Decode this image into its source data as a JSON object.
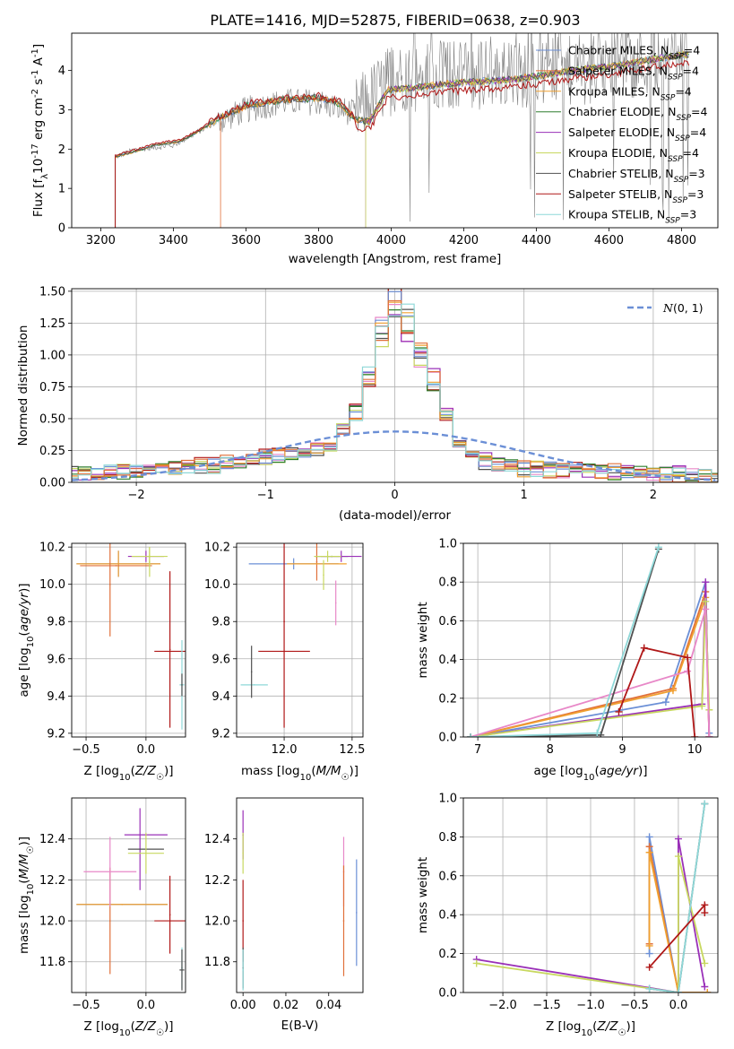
{
  "figure": {
    "title": "PLATE=1416, MJD=52875, FIBERID=0638, z=0.903"
  },
  "colors": {
    "models": [
      "#6b8fd6",
      "#e0703a",
      "#f0a030",
      "#2f7f2f",
      "#9a30b8",
      "#c8d860",
      "#505050",
      "#b01818",
      "#8ed8d8"
    ],
    "pink": "#e888c8",
    "normal_curve": "#6b8fd6",
    "grid": "#b0b0b0"
  },
  "chart_data": [
    {
      "id": "spectrum",
      "type": "line",
      "title": "PLATE=1416, MJD=52875, FIBERID=0638, z=0.903",
      "xlabel": "wavelength [Angstrom, rest frame]",
      "ylabel": "Flux [f$_\\lambda$10$^{-17}$ erg cm$^{-2}$ s$^{-1}$ A$^{-1}$]",
      "ylabel_parts": [
        "Flux [f",
        "λ",
        "10",
        "-17",
        " erg cm",
        "-2",
        " s",
        "-1",
        " A",
        "-1",
        "]"
      ],
      "xlim": [
        3120,
        4900
      ],
      "ylim": [
        0,
        4.95
      ],
      "xticks": [
        3200,
        3400,
        3600,
        3800,
        4000,
        4200,
        4400,
        4600,
        4800
      ],
      "yticks": [
        0,
        1,
        2,
        3,
        4
      ],
      "grid": false,
      "legend_position": "top-right",
      "legend": [
        {
          "label": "Chabrier MILES, N",
          "sub": "SSP",
          "tail": "=4"
        },
        {
          "label": "Salpeter MILES, N",
          "sub": "SSP",
          "tail": "=4"
        },
        {
          "label": "Kroupa MILES, N",
          "sub": "SSP",
          "tail": "=4"
        },
        {
          "label": "Chabrier ELODIE, N",
          "sub": "SSP",
          "tail": "=4"
        },
        {
          "label": "Salpeter ELODIE, N",
          "sub": "SSP",
          "tail": "=4"
        },
        {
          "label": "Kroupa ELODIE, N",
          "sub": "SSP",
          "tail": "=4"
        },
        {
          "label": "Chabrier STELIB, N",
          "sub": "SSP",
          "tail": "=3"
        },
        {
          "label": "Salpeter STELIB, N",
          "sub": "SSP",
          "tail": "=3"
        },
        {
          "label": "Kroupa STELIB, N",
          "sub": "SSP",
          "tail": "=3"
        }
      ],
      "data_series": {
        "name": "data",
        "x_range": [
          3240,
          4820
        ],
        "approx_level": [
          [
            3240,
            1.8
          ],
          [
            3300,
            2.0
          ],
          [
            3400,
            2.1
          ],
          [
            3500,
            2.6
          ],
          [
            3600,
            3.0
          ],
          [
            3700,
            3.2
          ],
          [
            3800,
            3.2
          ],
          [
            3900,
            2.9
          ],
          [
            4000,
            3.8
          ],
          [
            4200,
            3.9
          ],
          [
            4400,
            3.9
          ],
          [
            4600,
            4.1
          ],
          [
            4800,
            4.4
          ]
        ]
      },
      "model_continuum": [
        [
          3240,
          1.8
        ],
        [
          3300,
          1.95
        ],
        [
          3350,
          2.1
        ],
        [
          3420,
          2.2
        ],
        [
          3470,
          2.45
        ],
        [
          3520,
          2.75
        ],
        [
          3600,
          3.1
        ],
        [
          3700,
          3.25
        ],
        [
          3800,
          3.3
        ],
        [
          3860,
          3.15
        ],
        [
          3900,
          2.75
        ],
        [
          3940,
          2.7
        ],
        [
          3990,
          3.5
        ],
        [
          4100,
          3.6
        ],
        [
          4200,
          3.7
        ],
        [
          4300,
          3.75
        ],
        [
          4400,
          3.85
        ],
        [
          4500,
          4.0
        ],
        [
          4600,
          4.1
        ],
        [
          4700,
          4.25
        ],
        [
          4800,
          4.4
        ]
      ],
      "model_start_wavelengths": [
        3240,
        3530,
        3240,
        3240,
        3930,
        3930,
        3240,
        3240,
        3240
      ]
    },
    {
      "id": "residuals",
      "type": "line",
      "xlabel": "(data-model)/error",
      "ylabel": "Normed distribution",
      "xlim": [
        -2.5,
        2.5
      ],
      "ylim": [
        0,
        1.52
      ],
      "xticks": [
        -2,
        -1,
        0,
        1,
        2
      ],
      "yticks": [
        0.0,
        0.25,
        0.5,
        0.75,
        1.0,
        1.25,
        1.5
      ],
      "grid": true,
      "legend_position": "top-right",
      "legend": [
        {
          "label": "N(0, 1)"
        }
      ],
      "normal": {
        "mean": 0,
        "sigma": 1
      },
      "histogram_bin_width": 0.1,
      "histogram_profile": [
        [
          -2.5,
          0.05
        ],
        [
          -2.0,
          0.08
        ],
        [
          -1.5,
          0.12
        ],
        [
          -1.0,
          0.18
        ],
        [
          -0.7,
          0.22
        ],
        [
          -0.5,
          0.28
        ],
        [
          -0.3,
          0.55
        ],
        [
          -0.2,
          0.85
        ],
        [
          -0.1,
          1.2
        ],
        [
          0.0,
          1.42
        ],
        [
          0.1,
          1.25
        ],
        [
          0.2,
          1.0
        ],
        [
          0.3,
          0.8
        ],
        [
          0.4,
          0.55
        ],
        [
          0.5,
          0.3
        ],
        [
          0.7,
          0.15
        ],
        [
          1.0,
          0.1
        ],
        [
          1.5,
          0.08
        ],
        [
          2.0,
          0.06
        ],
        [
          2.5,
          0.04
        ]
      ]
    },
    {
      "id": "age-vs-Z",
      "type": "scatter",
      "xlabel": "Z [log10(Z/Z☉)]",
      "ylabel": "age  [log10(age/yr)]",
      "xlim": [
        -0.62,
        0.33
      ],
      "ylim": [
        9.18,
        10.22
      ],
      "xticks": [
        -0.5,
        0.0
      ],
      "yticks": [
        9.2,
        9.4,
        9.6,
        9.8,
        10.0,
        10.2
      ],
      "grid": true,
      "points": [
        {
          "x": -0.23,
          "y": 10.11,
          "xerr": 0.35,
          "yerr": 0.07,
          "model": 0
        },
        {
          "x": -0.23,
          "y": 10.11,
          "xerr": 0.35,
          "yerr": 0.07,
          "model": 2
        },
        {
          "x": -0.3,
          "y": 10.0,
          "xerr": 0.0,
          "yerr": 0.28,
          "model": 1
        },
        {
          "x": -0.25,
          "y": 10.1,
          "xerr": 0.3,
          "yerr": 0.0,
          "model": 1
        },
        {
          "x": 0.0,
          "y": 10.15,
          "xerr": 0.15,
          "yerr": 0.03,
          "model": 4
        },
        {
          "x": 0.03,
          "y": 10.15,
          "xerr": 0.15,
          "yerr": 0.05,
          "model": 5
        },
        {
          "x": 0.03,
          "y": 10.12,
          "xerr": 0.0,
          "yerr": 0.08,
          "model": 5
        },
        {
          "x": 0.2,
          "y": 9.64,
          "xerr": 0.13,
          "yerr": 0.0,
          "model": 7
        },
        {
          "x": 0.2,
          "y": 9.65,
          "xerr": 0.0,
          "yerr": 0.42,
          "model": 7
        },
        {
          "x": 0.3,
          "y": 9.46,
          "xerr": 0.02,
          "yerr": 0.24,
          "model": 8
        },
        {
          "x": 0.3,
          "y": 9.46,
          "xerr": 0.0,
          "yerr": 0.06,
          "model": 6
        }
      ]
    },
    {
      "id": "age-vs-mass",
      "type": "scatter",
      "xlabel": "mass [log10(M/M☉)]",
      "ylabel": "",
      "xlim": [
        11.65,
        12.58
      ],
      "ylim": [
        9.18,
        10.22
      ],
      "xticks": [
        12.0,
        12.5
      ],
      "yticks": [
        9.2,
        9.4,
        9.6,
        9.8,
        10.0,
        10.2
      ],
      "grid": true,
      "points": [
        {
          "x": 12.07,
          "y": 10.11,
          "xerr": 0.33,
          "yerr": 0.03,
          "model": 0
        },
        {
          "x": 12.24,
          "y": 10.12,
          "xerr": 0.0,
          "yerr": 0.1,
          "model": 1
        },
        {
          "x": 12.24,
          "y": 10.11,
          "xerr": 0.22,
          "yerr": 0.0,
          "model": 2
        },
        {
          "x": 12.35,
          "y": 10.15,
          "xerr": 0.12,
          "yerr": 0.0,
          "model": 3
        },
        {
          "x": 12.42,
          "y": 10.15,
          "xerr": 0.15,
          "yerr": 0.03,
          "model": 4
        },
        {
          "x": 12.32,
          "y": 10.15,
          "xerr": 0.1,
          "yerr": 0.03,
          "model": 5
        },
        {
          "x": 12.29,
          "y": 10.05,
          "xerr": 0.0,
          "yerr": 0.08,
          "model": 5
        },
        {
          "x": 12.0,
          "y": 9.64,
          "xerr": 0.19,
          "yerr": 0.0,
          "model": 7
        },
        {
          "x": 12.0,
          "y": 9.8,
          "xerr": 0.0,
          "yerr": 0.57,
          "model": 7
        },
        {
          "x": 11.78,
          "y": 9.46,
          "xerr": 0.1,
          "yerr": 0.0,
          "model": 8
        },
        {
          "x": 11.76,
          "y": 9.53,
          "xerr": 0.0,
          "yerr": 0.14,
          "model": 6
        },
        {
          "x": 12.38,
          "y": 9.9,
          "xerr": 0.0,
          "yerr": 0.12,
          "model": 9
        }
      ]
    },
    {
      "id": "mass-weight-vs-age",
      "type": "line",
      "xlabel": "age  [log10(age/yr)]",
      "ylabel": "mass weight",
      "xlim": [
        6.8,
        10.32
      ],
      "ylim": [
        0,
        1.0
      ],
      "xticks": [
        7,
        8,
        9,
        10
      ],
      "yticks": [
        0.0,
        0.2,
        0.4,
        0.6,
        0.8,
        1.0
      ],
      "grid": true,
      "series": [
        {
          "model": 0,
          "x": [
            6.9,
            9.6,
            10.15,
            10.2
          ],
          "y": [
            0.0,
            0.18,
            0.8,
            0.02
          ]
        },
        {
          "model": 1,
          "x": [
            6.9,
            9.7,
            10.15,
            10.2
          ],
          "y": [
            0.0,
            0.25,
            0.75,
            0.0
          ]
        },
        {
          "model": 2,
          "x": [
            6.9,
            9.7,
            10.15,
            10.2
          ],
          "y": [
            0.0,
            0.24,
            0.72,
            0.0
          ]
        },
        {
          "model": 4,
          "x": [
            6.9,
            10.1,
            10.15,
            10.2
          ],
          "y": [
            0.0,
            0.17,
            0.8,
            0.0
          ]
        },
        {
          "model": 5,
          "x": [
            6.9,
            10.1,
            10.15,
            10.2
          ],
          "y": [
            0.0,
            0.16,
            0.7,
            0.14
          ]
        },
        {
          "model": 9,
          "x": [
            6.9,
            9.9,
            10.15,
            10.2
          ],
          "y": [
            0.0,
            0.34,
            0.66,
            0.0
          ]
        },
        {
          "model": 6,
          "x": [
            6.9,
            8.7,
            9.5
          ],
          "y": [
            0.0,
            0.01,
            0.97
          ]
        },
        {
          "model": 8,
          "x": [
            6.9,
            8.65,
            9.5
          ],
          "y": [
            0.0,
            0.02,
            0.98
          ]
        },
        {
          "model": 7,
          "x": [
            8.95,
            9.3,
            9.9,
            10.0
          ],
          "y": [
            0.13,
            0.46,
            0.41,
            0.0
          ]
        }
      ]
    },
    {
      "id": "mass-vs-Z",
      "type": "scatter",
      "xlabel": "Z [log10(Z/Z☉)]",
      "ylabel": "mass [log10(M/M☉)]",
      "xlim": [
        -0.62,
        0.33
      ],
      "ylim": [
        11.65,
        12.6
      ],
      "xticks": [
        -0.5,
        0.0
      ],
      "yticks": [
        11.8,
        12.0,
        12.2,
        12.4
      ],
      "grid": true,
      "points": [
        {
          "x": -0.2,
          "y": 12.08,
          "xerr": 0.38,
          "yerr": 0.0,
          "model": 0
        },
        {
          "x": -0.3,
          "y": 12.0,
          "xerr": 0.0,
          "yerr": 0.26,
          "model": 1
        },
        {
          "x": -0.2,
          "y": 12.08,
          "xerr": 0.38,
          "yerr": 0.0,
          "model": 2
        },
        {
          "x": -0.3,
          "y": 12.24,
          "xerr": 0.22,
          "yerr": 0.17,
          "model": 9
        },
        {
          "x": 0.0,
          "y": 12.42,
          "xerr": 0.18,
          "yerr": 0.0,
          "model": 4
        },
        {
          "x": -0.05,
          "y": 12.35,
          "xerr": 0.0,
          "yerr": 0.2,
          "model": 4
        },
        {
          "x": 0.0,
          "y": 12.35,
          "xerr": 0.15,
          "yerr": 0.0,
          "model": 6
        },
        {
          "x": 0.0,
          "y": 12.33,
          "xerr": 0.15,
          "yerr": 0.1,
          "model": 5
        },
        {
          "x": 0.2,
          "y": 12.0,
          "xerr": 0.13,
          "yerr": 0.0,
          "model": 7
        },
        {
          "x": 0.2,
          "y": 12.03,
          "xerr": 0.0,
          "yerr": 0.19,
          "model": 7
        },
        {
          "x": 0.3,
          "y": 11.77,
          "xerr": 0.0,
          "yerr": 0.1,
          "model": 8
        },
        {
          "x": 0.3,
          "y": 11.76,
          "xerr": 0.02,
          "yerr": 0.1,
          "model": 6
        }
      ]
    },
    {
      "id": "mass-vs-EBV",
      "type": "scatter",
      "xlabel": "E(B-V)",
      "ylabel": "",
      "xlim": [
        -0.003,
        0.056
      ],
      "ylim": [
        11.65,
        12.6
      ],
      "xticks": [
        0.0,
        0.02,
        0.04
      ],
      "yticks": [
        11.8,
        12.0,
        12.2,
        12.4
      ],
      "grid": false,
      "points": [
        {
          "x": 0.0,
          "y": 12.42,
          "xerr": 0.0,
          "yerr": 0.12,
          "model": 4
        },
        {
          "x": 0.0,
          "y": 12.33,
          "xerr": 0.0,
          "yerr": 0.1,
          "model": 5
        },
        {
          "x": 0.0,
          "y": 12.0,
          "xerr": 0.0,
          "yerr": 0.2,
          "model": 7
        },
        {
          "x": 0.0,
          "y": 11.77,
          "xerr": 0.0,
          "yerr": 0.1,
          "model": 6
        },
        {
          "x": 0.0,
          "y": 11.76,
          "xerr": 0.0,
          "yerr": 0.1,
          "model": 8
        },
        {
          "x": 0.047,
          "y": 12.24,
          "xerr": 0.0,
          "yerr": 0.17,
          "model": 9
        },
        {
          "x": 0.047,
          "y": 12.0,
          "xerr": 0.0,
          "yerr": 0.27,
          "model": 1
        },
        {
          "x": 0.053,
          "y": 12.04,
          "xerr": 0.0,
          "yerr": 0.26,
          "model": 0
        }
      ]
    },
    {
      "id": "mass-weight-vs-Z",
      "type": "line",
      "xlabel": "Z [log10(Z/Z☉)]",
      "ylabel": "mass weight",
      "xlim": [
        -2.45,
        0.45
      ],
      "ylim": [
        0,
        1.0
      ],
      "xticks": [
        -2.0,
        -1.5,
        -1.0,
        -0.5,
        0.0
      ],
      "yticks": [
        0.0,
        0.2,
        0.4,
        0.6,
        0.8,
        1.0
      ],
      "grid": true,
      "series": [
        {
          "model": 0,
          "x": [
            -0.33,
            -0.33,
            0.0,
            0.33
          ],
          "y": [
            0.2,
            0.8,
            0.0,
            0.0
          ]
        },
        {
          "model": 1,
          "x": [
            -0.33,
            -0.33,
            0.0,
            0.33
          ],
          "y": [
            0.25,
            0.75,
            0.0,
            0.0
          ]
        },
        {
          "model": 2,
          "x": [
            -0.33,
            -0.33,
            0.0,
            0.33
          ],
          "y": [
            0.24,
            0.72,
            0.0,
            0.0
          ]
        },
        {
          "model": 4,
          "x": [
            -2.3,
            0.0,
            0.0,
            0.3
          ],
          "y": [
            0.17,
            0.0,
            0.79,
            0.03
          ]
        },
        {
          "model": 5,
          "x": [
            -2.3,
            0.0,
            0.0,
            0.3
          ],
          "y": [
            0.15,
            0.0,
            0.7,
            0.15
          ]
        },
        {
          "model": 6,
          "x": [
            -0.33,
            0.0,
            0.3
          ],
          "y": [
            0.02,
            0.0,
            0.97
          ]
        },
        {
          "model": 8,
          "x": [
            -0.33,
            0.0,
            0.3
          ],
          "y": [
            0.02,
            0.0,
            0.97
          ]
        },
        {
          "model": 7,
          "x": [
            -0.33,
            0.3,
            0.3
          ],
          "y": [
            0.13,
            0.45,
            0.41
          ]
        }
      ]
    }
  ]
}
